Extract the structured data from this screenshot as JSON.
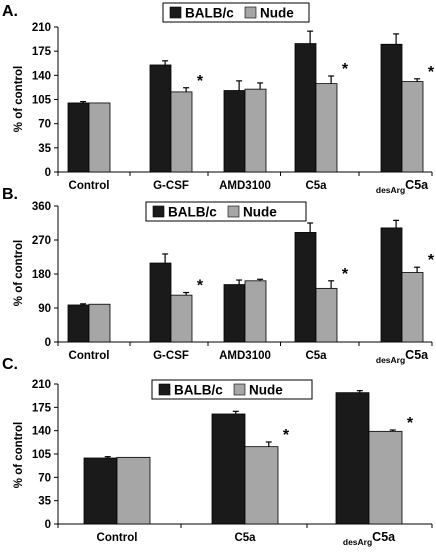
{
  "colors": {
    "balb": "#1a1a1a",
    "nude": "#a6a6a6",
    "axis": "#000000",
    "text": "#000000"
  },
  "chart_data": [
    {
      "panel_label": "A.",
      "type": "bar",
      "ylabel": "% of control",
      "xlabel": "",
      "ylim": [
        0,
        210
      ],
      "yticks": [
        0,
        35,
        70,
        105,
        140,
        175,
        210
      ],
      "categories": [
        {
          "text": "Control",
          "subscript": ""
        },
        {
          "text": "G-CSF",
          "subscript": ""
        },
        {
          "text": "AMD3100",
          "subscript": ""
        },
        {
          "text": "C5a",
          "subscript": ""
        },
        {
          "text": "C5a",
          "subscript": "desArg"
        }
      ],
      "series": [
        {
          "name": "BALB/c",
          "values": [
            100,
            155,
            118,
            186,
            185
          ],
          "errors": [
            2,
            6,
            14,
            18,
            15
          ]
        },
        {
          "name": "Nude",
          "values": [
            100,
            116,
            120,
            128,
            131
          ],
          "errors": [
            0,
            6,
            9,
            11,
            4
          ]
        }
      ],
      "annotations": [
        {
          "category": 1,
          "series": 1,
          "text": "*"
        },
        {
          "category": 3,
          "series": 1,
          "text": "*"
        },
        {
          "category": 4,
          "series": 1,
          "text": "*"
        }
      ],
      "legend_placement": "top-center"
    },
    {
      "panel_label": "B.",
      "type": "bar",
      "ylabel": "% of control",
      "xlabel": "",
      "ylim": [
        0,
        360
      ],
      "yticks": [
        0,
        90,
        180,
        270,
        360
      ],
      "categories": [
        {
          "text": "Control",
          "subscript": ""
        },
        {
          "text": "G-CSF",
          "subscript": ""
        },
        {
          "text": "AMD3100",
          "subscript": ""
        },
        {
          "text": "C5a",
          "subscript": ""
        },
        {
          "text": "C5a",
          "subscript": "desArg"
        }
      ],
      "series": [
        {
          "name": "BALB/c",
          "values": [
            98,
            209,
            152,
            290,
            302
          ],
          "errors": [
            3,
            24,
            12,
            25,
            20
          ]
        },
        {
          "name": "Nude",
          "values": [
            100,
            124,
            162,
            142,
            184
          ],
          "errors": [
            0,
            7,
            4,
            20,
            14
          ]
        }
      ],
      "annotations": [
        {
          "category": 1,
          "series": 1,
          "text": "*"
        },
        {
          "category": 3,
          "series": 1,
          "text": "*"
        },
        {
          "category": 4,
          "series": 1,
          "text": "*"
        }
      ],
      "legend_placement": "top-center"
    },
    {
      "panel_label": "C.",
      "type": "bar",
      "ylabel": "% of control",
      "xlabel": "",
      "ylim": [
        0,
        210
      ],
      "yticks": [
        0,
        35,
        70,
        105,
        140,
        175,
        210
      ],
      "categories": [
        {
          "text": "Control",
          "subscript": ""
        },
        {
          "text": "C5a",
          "subscript": ""
        },
        {
          "text": "C5a",
          "subscript": "desArg"
        }
      ],
      "series": [
        {
          "name": "BALB/c",
          "values": [
            99,
            165,
            197
          ],
          "errors": [
            2,
            4,
            3
          ]
        },
        {
          "name": "Nude",
          "values": [
            100,
            116,
            139
          ],
          "errors": [
            0,
            7,
            2
          ]
        }
      ],
      "annotations": [
        {
          "category": 1,
          "series": 1,
          "text": "*"
        },
        {
          "category": 2,
          "series": 1,
          "text": "*"
        }
      ],
      "legend_placement": "top-center"
    }
  ]
}
